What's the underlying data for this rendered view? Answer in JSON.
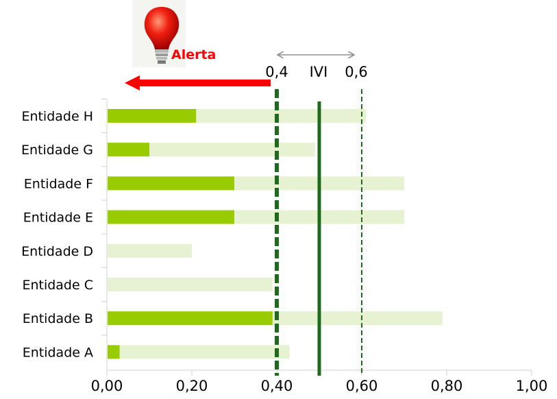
{
  "chart_data": {
    "type": "bar",
    "orientation": "horizontal",
    "categories": [
      "Entidade H",
      "Entidade G",
      "Entidade F",
      "Entidade E",
      "Entidade D",
      "Entidade C",
      "Entidade B",
      "Entidade A"
    ],
    "series": [
      {
        "values": [
          0.61,
          0.49,
          0.7,
          0.7,
          0.2,
          0.39,
          0.79,
          0.43
        ],
        "color": "#e6f2d2"
      },
      {
        "values": [
          0.21,
          0.1,
          0.3,
          0.3,
          0.0,
          0.0,
          0.39,
          0.03
        ],
        "color": "#99cc00"
      }
    ],
    "xlim": [
      0,
      1.0
    ],
    "xticks": [
      0.0,
      0.2,
      0.4,
      0.6,
      0.8,
      1.0
    ],
    "xtick_labels": [
      "0,00",
      "0,20",
      "0,40",
      "0,60",
      "0,80",
      "1,00"
    ],
    "reference_lines": [
      {
        "value": 0.4,
        "style": "dashed-thick",
        "color": "#1e6b1e"
      },
      {
        "value": 0.5,
        "style": "solid",
        "color": "#1e6b1e"
      },
      {
        "value": 0.6,
        "style": "dashed-thin",
        "color": "#1e6b1e"
      }
    ],
    "grid": false,
    "annotations": {
      "low": "0,4",
      "mid": "IVI",
      "high": "0,6",
      "alert": "Alerta",
      "alert_color": "#ff0000"
    }
  }
}
